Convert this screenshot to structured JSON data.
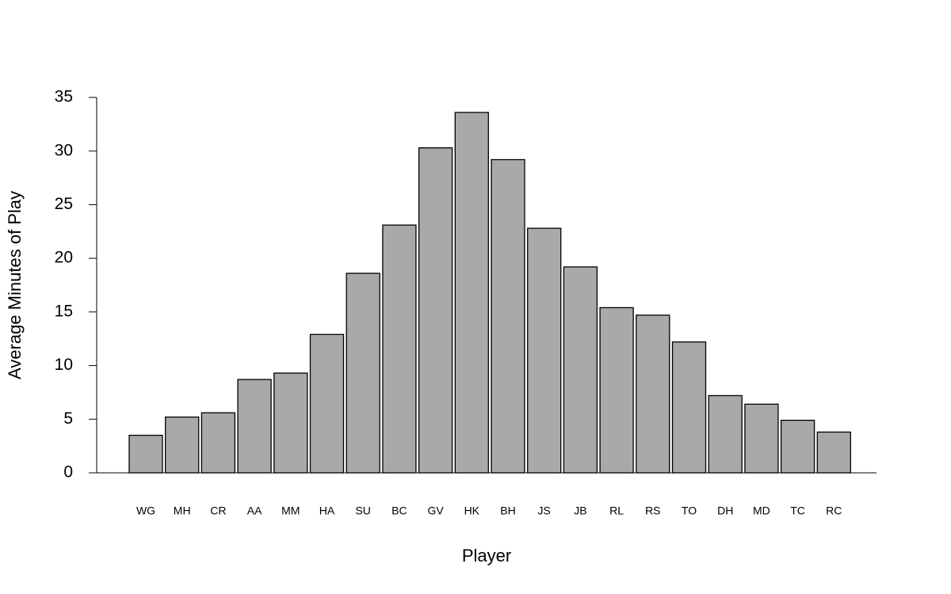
{
  "chart_data": {
    "type": "bar",
    "x_label": "Player",
    "y_label": "Average Minutes of Play",
    "categories": [
      "WG",
      "MH",
      "CR",
      "AA",
      "MM",
      "HA",
      "SU",
      "BC",
      "GV",
      "HK",
      "BH",
      "JS",
      "JB",
      "RL",
      "RS",
      "TO",
      "DH",
      "MD",
      "TC",
      "RC"
    ],
    "values": [
      3.5,
      5.2,
      5.6,
      8.7,
      9.3,
      12.9,
      18.6,
      23.1,
      30.3,
      33.6,
      29.2,
      22.8,
      19.2,
      15.4,
      14.7,
      12.2,
      7.2,
      6.4,
      4.9,
      3.8
    ],
    "color": "#a9a9a9",
    "ylim": [
      0,
      35
    ],
    "yticks": [
      0,
      5,
      10,
      15,
      20,
      25,
      30,
      35
    ]
  }
}
